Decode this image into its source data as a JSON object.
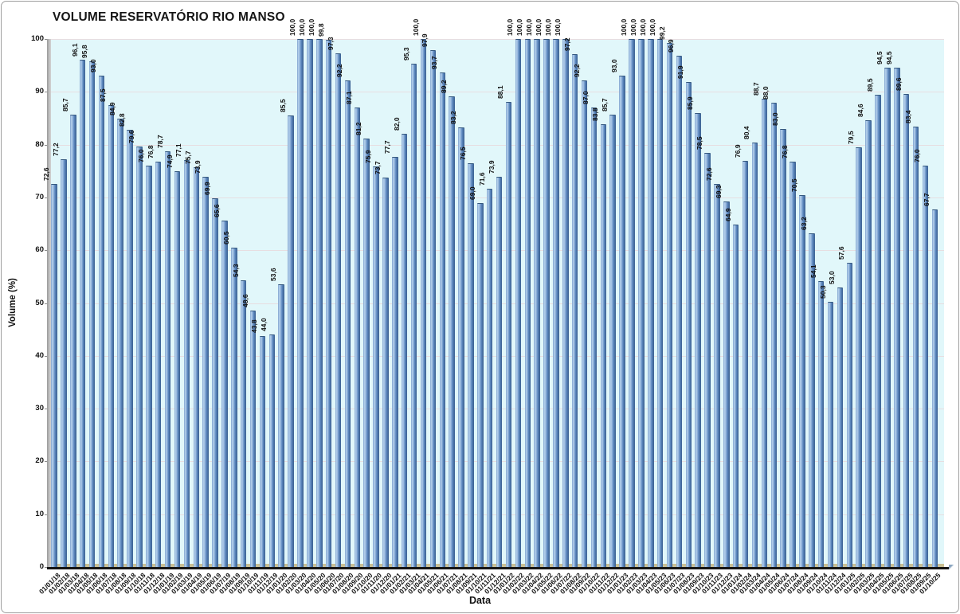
{
  "chart_data": {
    "type": "bar",
    "title": "VOLUME RESERVATÓRIO RIO MANSO",
    "xlabel": "Data",
    "ylabel": "Volume (%)",
    "ylim": [
      0,
      100
    ],
    "yticks": [
      0,
      10,
      20,
      30,
      40,
      50,
      60,
      70,
      80,
      90,
      100
    ],
    "grid": "horizontal",
    "legend_position": "none",
    "value_label_format": "one-decimal-comma",
    "colors": {
      "plot_background": "#e1f7fa",
      "gridline": "#e7dee1",
      "bar_main": "#5c88bf",
      "bar_highlight": "#b7d2ec",
      "bar_edge_dark": "#3d6394",
      "floor": "#c9bf93",
      "wall": "#9a9a9a",
      "baseline": "#141414",
      "text": "#111111"
    },
    "categories": [
      "01/01/18",
      "01/02/18",
      "01/03/18",
      "01/04/18",
      "01/05/18",
      "01/06/18",
      "01/07/18",
      "01/08/18",
      "01/09/18",
      "01/10/18",
      "01/11/18",
      "01/12/18",
      "01/01/19",
      "01/02/19",
      "01/03/19",
      "01/04/19",
      "01/05/19",
      "01/06/19",
      "01/07/19",
      "01/08/19",
      "01/09/19",
      "01/10/19",
      "01/11/19",
      "01/12/19",
      "01/01/20",
      "01/02/20",
      "01/03/20",
      "01/04/20",
      "01/05/20",
      "01/06/20",
      "01/07/20",
      "01/08/20",
      "01/09/20",
      "01/10/20",
      "01/11/20",
      "01/12/20",
      "01/01/21",
      "01/02/21",
      "01/03/21",
      "01/04/21",
      "01/05/21",
      "01/06/21",
      "01/07/21",
      "01/08/21",
      "01/09/21",
      "01/10/21",
      "01/11/21",
      "01/12/21",
      "01/01/22",
      "01/02/22",
      "01/03/22",
      "01/04/22",
      "01/05/22",
      "01/06/22",
      "01/07/22",
      "01/08/22",
      "01/09/22",
      "01/10/22",
      "01/11/22",
      "01/12/22",
      "01/01/23",
      "01/02/23",
      "01/03/23",
      "01/04/23",
      "01/05/23",
      "01/06/23",
      "01/07/23",
      "01/08/23",
      "01/09/23",
      "01/10/23",
      "01/11/23",
      "01/12/23",
      "01/01/24",
      "01/02/24",
      "01/03/24",
      "01/04/24",
      "01/05/24",
      "01/06/24",
      "01/07/24",
      "01/08/24",
      "01/09/24",
      "01/10/24",
      "01/11/24",
      "01/12/24",
      "01/01/25",
      "01/02/25",
      "01/03/25",
      "01/04/25",
      "01/05/25",
      "01/06/25",
      "01/07/25",
      "01/08/25",
      "01/09/25",
      "01/10/25"
    ],
    "values": [
      72.6,
      77.2,
      85.7,
      96.1,
      95.8,
      93.0,
      87.5,
      84.9,
      82.8,
      79.6,
      76.0,
      76.8,
      78.7,
      74.9,
      77.1,
      75.7,
      73.9,
      69.9,
      65.6,
      60.5,
      54.3,
      48.6,
      43.8,
      44.0,
      53.6,
      85.5,
      100.0,
      100.0,
      100.0,
      99.8,
      97.3,
      92.2,
      87.1,
      81.2,
      75.9,
      73.7,
      77.7,
      82.0,
      95.3,
      100.0,
      97.9,
      93.7,
      89.2,
      83.2,
      76.5,
      69.0,
      71.6,
      73.9,
      88.1,
      100.0,
      100.0,
      100.0,
      100.0,
      100.0,
      100.0,
      97.2,
      92.2,
      87.0,
      83.8,
      85.7,
      93.0,
      100.0,
      100.0,
      100.0,
      100.0,
      99.2,
      96.9,
      91.9,
      85.9,
      78.5,
      72.6,
      69.3,
      64.9,
      76.9,
      80.4,
      88.7,
      88.0,
      83.0,
      76.8,
      70.5,
      63.2,
      54.1,
      50.3,
      53.0,
      57.6,
      79.5,
      84.6,
      89.5,
      94.5,
      94.5,
      89.6,
      83.4,
      76.0,
      67.7
    ]
  }
}
